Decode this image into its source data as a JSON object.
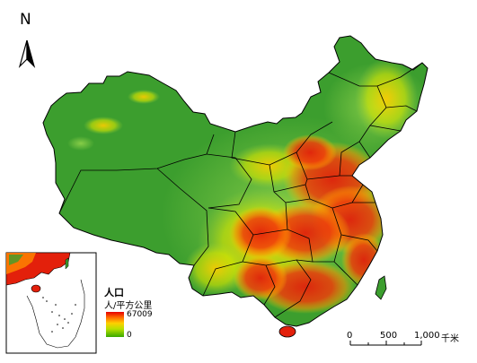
{
  "north_arrow": {
    "label": "N",
    "icon": "north-arrow-icon"
  },
  "legend": {
    "title": "人口",
    "unit": "人/平方公里",
    "max_label": "67009",
    "min_label": "0",
    "ramp_colors": [
      "#e60000",
      "#ff6a00",
      "#ffd000",
      "#b8e000",
      "#38a800"
    ]
  },
  "scale_bar": {
    "ticks": [
      "0",
      "500",
      "1,000"
    ],
    "unit": "千米"
  },
  "colors": {
    "base_green": "#3c9e2e",
    "light_green": "#6cc24a",
    "yellow": "#f3e600",
    "orange": "#ff7a00",
    "red": "#e3200b",
    "boundary": "#000000"
  }
}
